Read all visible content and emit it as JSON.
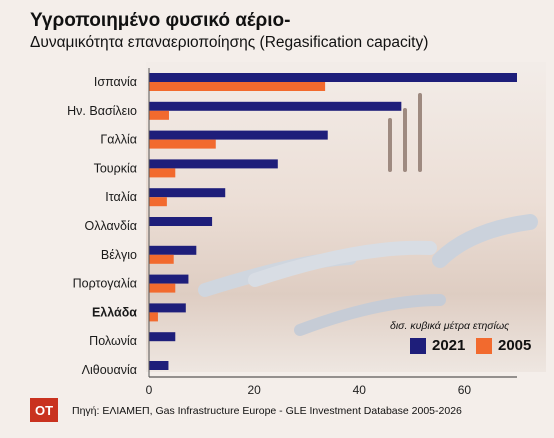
{
  "header": {
    "title": "Υγροποιημένο φυσικό αέριο-",
    "subtitle": "Δυναμικότητα επαναεριοποίησης (Regasification capacity)"
  },
  "legend": {
    "unit": "δισ. κυβικά μέτρα ετησίως",
    "items": [
      {
        "label": "2021",
        "color": "#1e1e7a"
      },
      {
        "label": "2005",
        "color": "#f26a2e"
      }
    ]
  },
  "footer": {
    "logo_text": "OT",
    "source": "Πηγή: ΕΛΙΑΜΕΠ, Gas Infrastructure Europe - GLE Investment Database 2005-2026"
  },
  "chart_data": {
    "type": "bar",
    "orientation": "horizontal",
    "categories": [
      "Ισπανία",
      "Ην. Βασίλειο",
      "Γαλλία",
      "Τουρκία",
      "Ιταλία",
      "Ολλανδία",
      "Βέλγιο",
      "Πορτογαλία",
      "Ελλάδα",
      "Πολωνία",
      "Λιθουανία"
    ],
    "highlight_category": "Ελλάδα",
    "series": [
      {
        "name": "2021",
        "color": "#1e1e7a",
        "values": [
          70,
          48,
          34,
          24.5,
          14.5,
          12,
          9,
          7.5,
          7,
          5,
          3.7
        ]
      },
      {
        "name": "2005",
        "color": "#f26a2e",
        "values": [
          33.5,
          3.8,
          12.7,
          5,
          3.4,
          null,
          4.7,
          5,
          1.7,
          null,
          null
        ]
      }
    ],
    "xticks": [
      0,
      20,
      40,
      60
    ],
    "xlim": [
      0,
      70
    ],
    "xlabel": "",
    "ylabel": "",
    "grid": false,
    "legend_position": "bottom-right"
  }
}
